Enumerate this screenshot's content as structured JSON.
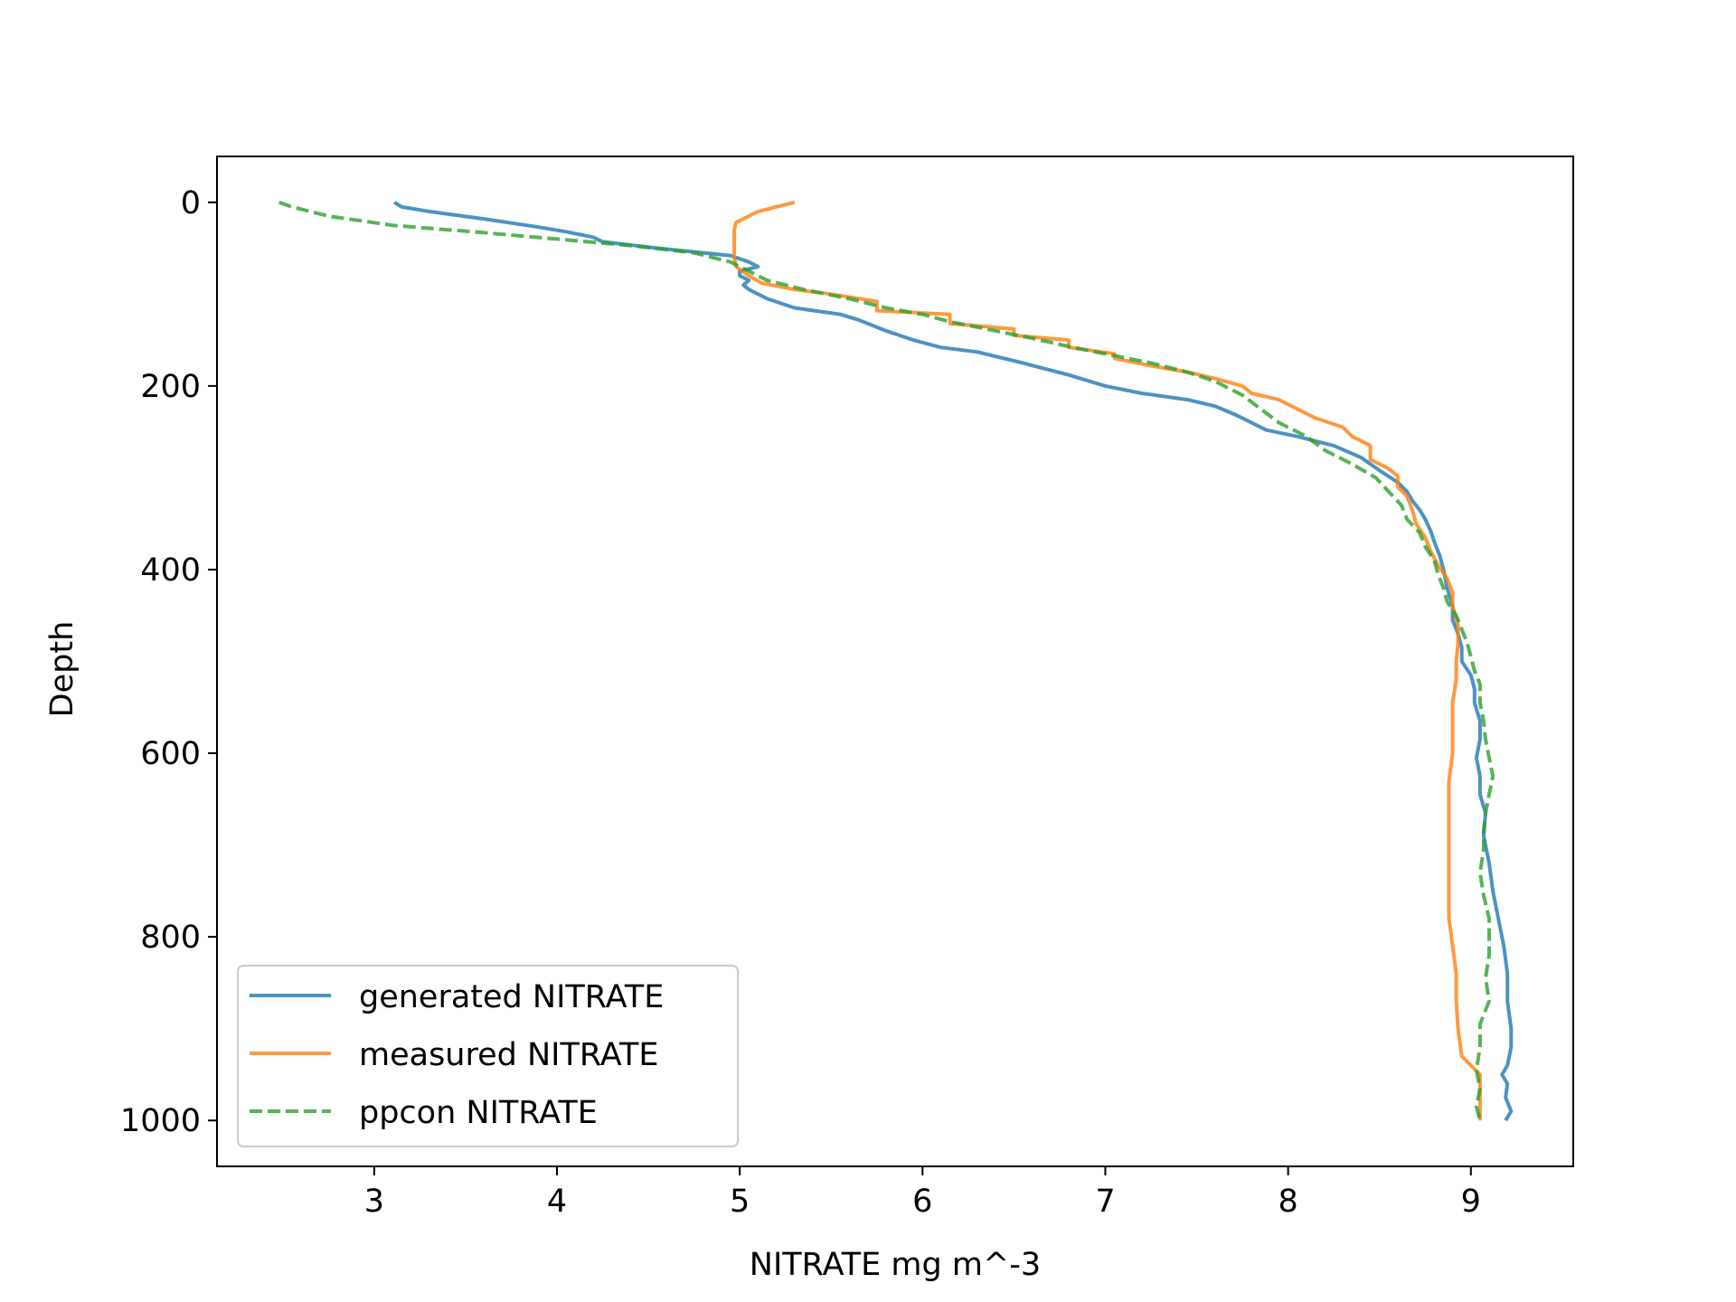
{
  "chart_data": {
    "type": "line",
    "xlabel": "NITRATE mg m^-3",
    "ylabel": "Depth",
    "xlim": [
      2.14,
      9.56
    ],
    "ylim": [
      1050,
      -50
    ],
    "y_inverted": true,
    "grid": false,
    "legend_position": "lower-left",
    "xticks": [
      3,
      4,
      5,
      6,
      7,
      8,
      9
    ],
    "yticks": [
      0,
      200,
      400,
      600,
      800,
      1000
    ],
    "series": [
      {
        "name": "generated NITRATE",
        "color": "#1f77b4",
        "dash": "solid",
        "points": [
          [
            3.11,
            0
          ],
          [
            3.15,
            5
          ],
          [
            3.3,
            10
          ],
          [
            3.6,
            18
          ],
          [
            3.9,
            27
          ],
          [
            4.05,
            32
          ],
          [
            4.2,
            38
          ],
          [
            4.25,
            43
          ],
          [
            4.55,
            50
          ],
          [
            4.95,
            58
          ],
          [
            5.05,
            65
          ],
          [
            5.1,
            70
          ],
          [
            5.0,
            75
          ],
          [
            5.0,
            80
          ],
          [
            5.05,
            85
          ],
          [
            5.02,
            90
          ],
          [
            5.05,
            95
          ],
          [
            5.15,
            105
          ],
          [
            5.3,
            115
          ],
          [
            5.55,
            122
          ],
          [
            5.65,
            128
          ],
          [
            5.8,
            140
          ],
          [
            5.95,
            150
          ],
          [
            6.1,
            158
          ],
          [
            6.3,
            163
          ],
          [
            6.55,
            175
          ],
          [
            6.8,
            188
          ],
          [
            7.0,
            200
          ],
          [
            7.2,
            208
          ],
          [
            7.45,
            215
          ],
          [
            7.6,
            222
          ],
          [
            7.72,
            232
          ],
          [
            7.88,
            248
          ],
          [
            8.05,
            255
          ],
          [
            8.25,
            265
          ],
          [
            8.4,
            278
          ],
          [
            8.5,
            292
          ],
          [
            8.6,
            305
          ],
          [
            8.65,
            315
          ],
          [
            8.68,
            325
          ],
          [
            8.72,
            335
          ],
          [
            8.75,
            345
          ],
          [
            8.78,
            358
          ],
          [
            8.8,
            370
          ],
          [
            8.83,
            385
          ],
          [
            8.85,
            400
          ],
          [
            8.87,
            420
          ],
          [
            8.9,
            440
          ],
          [
            8.9,
            455
          ],
          [
            8.93,
            470
          ],
          [
            8.95,
            485
          ],
          [
            8.95,
            500
          ],
          [
            9.0,
            515
          ],
          [
            9.02,
            530
          ],
          [
            9.02,
            545
          ],
          [
            9.05,
            565
          ],
          [
            9.05,
            585
          ],
          [
            9.03,
            605
          ],
          [
            9.05,
            625
          ],
          [
            9.05,
            645
          ],
          [
            9.08,
            665
          ],
          [
            9.07,
            690
          ],
          [
            9.1,
            720
          ],
          [
            9.12,
            750
          ],
          [
            9.15,
            780
          ],
          [
            9.18,
            810
          ],
          [
            9.2,
            840
          ],
          [
            9.2,
            870
          ],
          [
            9.22,
            900
          ],
          [
            9.22,
            920
          ],
          [
            9.2,
            940
          ],
          [
            9.17,
            950
          ],
          [
            9.2,
            960
          ],
          [
            9.19,
            975
          ],
          [
            9.22,
            990
          ],
          [
            9.19,
            1000
          ]
        ]
      },
      {
        "name": "measured NITRATE",
        "color": "#ff7f0e",
        "dash": "solid",
        "points": [
          [
            5.3,
            0
          ],
          [
            5.2,
            5
          ],
          [
            5.1,
            10
          ],
          [
            5.05,
            15
          ],
          [
            4.98,
            22
          ],
          [
            4.97,
            30
          ],
          [
            4.97,
            45
          ],
          [
            4.97,
            60
          ],
          [
            4.98,
            70
          ],
          [
            5.05,
            80
          ],
          [
            5.12,
            88
          ],
          [
            5.3,
            95
          ],
          [
            5.5,
            100
          ],
          [
            5.75,
            108
          ],
          [
            5.75,
            118
          ],
          [
            6.15,
            122
          ],
          [
            6.15,
            132
          ],
          [
            6.5,
            138
          ],
          [
            6.5,
            145
          ],
          [
            6.8,
            150
          ],
          [
            6.8,
            158
          ],
          [
            7.05,
            165
          ],
          [
            7.05,
            170
          ],
          [
            7.25,
            178
          ],
          [
            7.45,
            185
          ],
          [
            7.6,
            192
          ],
          [
            7.75,
            200
          ],
          [
            7.8,
            208
          ],
          [
            7.95,
            215
          ],
          [
            8.05,
            225
          ],
          [
            8.15,
            235
          ],
          [
            8.3,
            245
          ],
          [
            8.35,
            255
          ],
          [
            8.45,
            265
          ],
          [
            8.45,
            280
          ],
          [
            8.55,
            290
          ],
          [
            8.6,
            298
          ],
          [
            8.6,
            310
          ],
          [
            8.65,
            320
          ],
          [
            8.68,
            335
          ],
          [
            8.7,
            350
          ],
          [
            8.75,
            365
          ],
          [
            8.78,
            380
          ],
          [
            8.82,
            395
          ],
          [
            8.87,
            410
          ],
          [
            8.9,
            425
          ],
          [
            8.9,
            440
          ],
          [
            8.93,
            460
          ],
          [
            8.93,
            480
          ],
          [
            8.92,
            500
          ],
          [
            8.92,
            520
          ],
          [
            8.9,
            545
          ],
          [
            8.9,
            570
          ],
          [
            8.9,
            600
          ],
          [
            8.88,
            630
          ],
          [
            8.88,
            660
          ],
          [
            8.88,
            690
          ],
          [
            8.88,
            720
          ],
          [
            8.88,
            750
          ],
          [
            8.88,
            780
          ],
          [
            8.9,
            810
          ],
          [
            8.92,
            840
          ],
          [
            8.92,
            870
          ],
          [
            8.93,
            900
          ],
          [
            8.95,
            930
          ],
          [
            9.05,
            950
          ],
          [
            9.05,
            975
          ],
          [
            9.05,
            1000
          ]
        ]
      },
      {
        "name": "ppcon NITRATE",
        "color": "#2ca02c",
        "dash": "dashed",
        "points": [
          [
            2.48,
            0
          ],
          [
            2.55,
            5
          ],
          [
            2.75,
            15
          ],
          [
            3.1,
            25
          ],
          [
            3.6,
            33
          ],
          [
            4.0,
            40
          ],
          [
            4.4,
            47
          ],
          [
            4.75,
            55
          ],
          [
            4.95,
            65
          ],
          [
            5.05,
            75
          ],
          [
            5.15,
            85
          ],
          [
            5.35,
            95
          ],
          [
            5.6,
            105
          ],
          [
            5.8,
            115
          ],
          [
            6.0,
            122
          ],
          [
            6.15,
            130
          ],
          [
            6.35,
            138
          ],
          [
            6.6,
            148
          ],
          [
            6.8,
            157
          ],
          [
            7.0,
            165
          ],
          [
            7.25,
            175
          ],
          [
            7.45,
            185
          ],
          [
            7.6,
            195
          ],
          [
            7.75,
            210
          ],
          [
            7.85,
            225
          ],
          [
            7.95,
            240
          ],
          [
            8.1,
            255
          ],
          [
            8.2,
            270
          ],
          [
            8.35,
            285
          ],
          [
            8.48,
            300
          ],
          [
            8.55,
            315
          ],
          [
            8.62,
            330
          ],
          [
            8.65,
            345
          ],
          [
            8.72,
            360
          ],
          [
            8.75,
            375
          ],
          [
            8.8,
            390
          ],
          [
            8.82,
            405
          ],
          [
            8.85,
            420
          ],
          [
            8.87,
            435
          ],
          [
            8.92,
            450
          ],
          [
            8.95,
            465
          ],
          [
            8.98,
            480
          ],
          [
            9.0,
            495
          ],
          [
            9.02,
            510
          ],
          [
            9.05,
            525
          ],
          [
            9.05,
            545
          ],
          [
            9.07,
            565
          ],
          [
            9.08,
            585
          ],
          [
            9.1,
            605
          ],
          [
            9.12,
            625
          ],
          [
            9.1,
            645
          ],
          [
            9.08,
            665
          ],
          [
            9.07,
            685
          ],
          [
            9.07,
            705
          ],
          [
            9.05,
            730
          ],
          [
            9.07,
            755
          ],
          [
            9.1,
            780
          ],
          [
            9.1,
            800
          ],
          [
            9.1,
            820
          ],
          [
            9.08,
            845
          ],
          [
            9.1,
            870
          ],
          [
            9.05,
            895
          ],
          [
            9.05,
            920
          ],
          [
            9.03,
            945
          ],
          [
            9.05,
            965
          ],
          [
            9.03,
            985
          ],
          [
            9.05,
            1000
          ]
        ]
      }
    ]
  }
}
